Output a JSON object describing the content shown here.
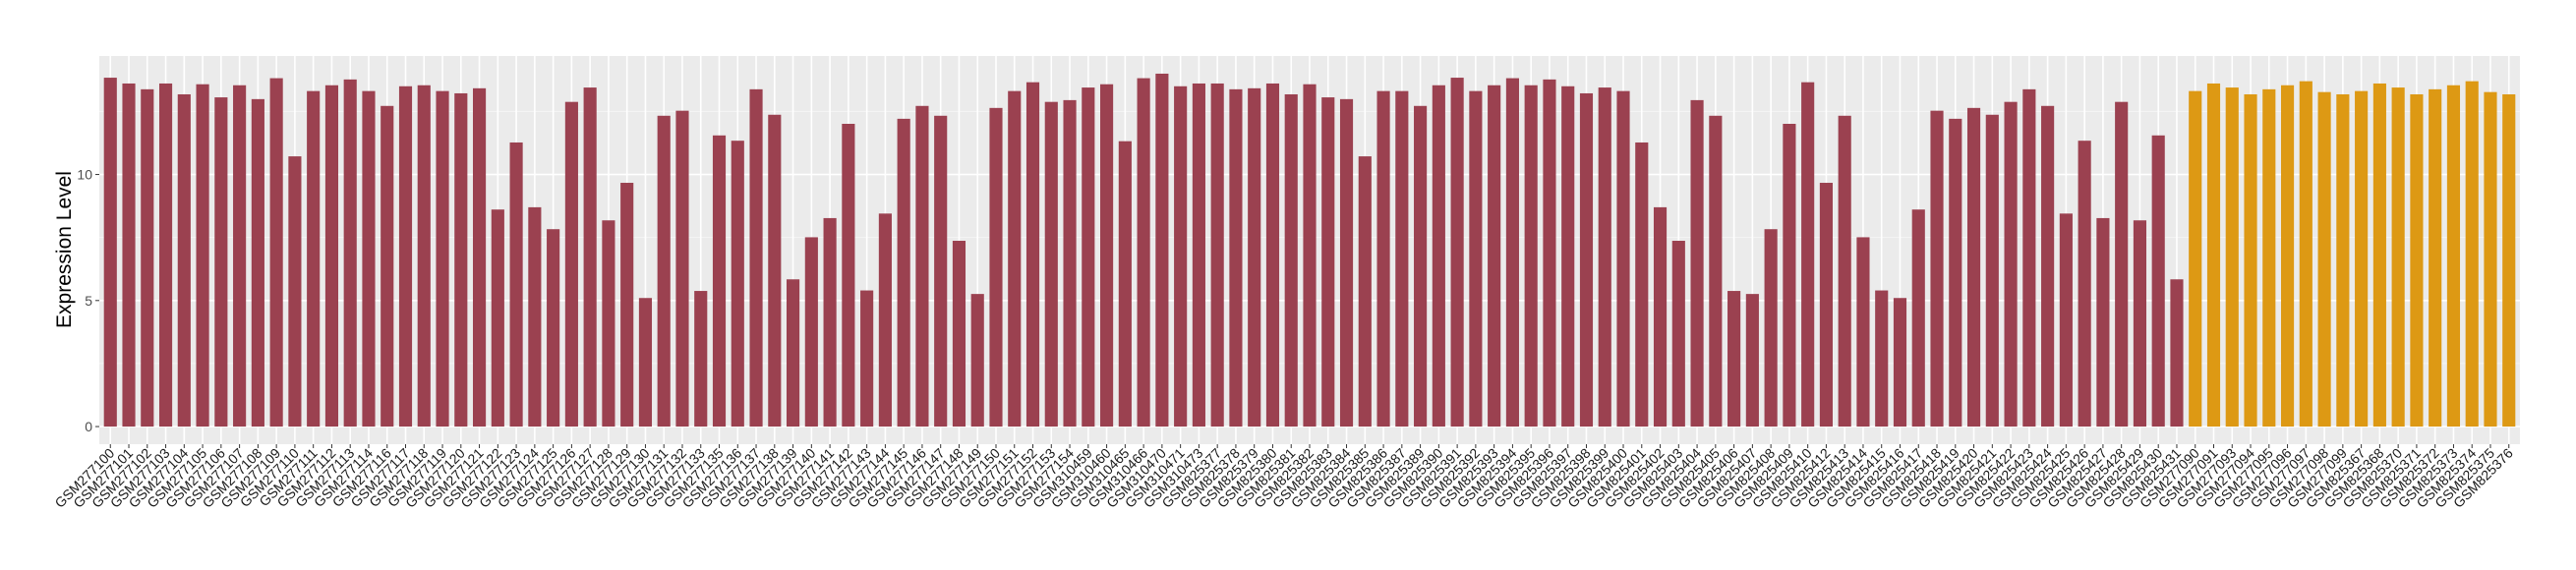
{
  "chart_data": {
    "type": "bar",
    "title": "",
    "xlabel": "",
    "ylabel": "Expression Level",
    "ylim": [
      -0.7,
      14.7
    ],
    "yticks": [
      0,
      5,
      10
    ],
    "grid": true,
    "legend": "none",
    "colors": {
      "group1": "#9B4150",
      "group2": "#DD9914",
      "panel": "#EBEBEB",
      "grid": "#FFFFFF"
    },
    "categories": [
      "GSM277100",
      "GSM277101",
      "GSM277102",
      "GSM277103",
      "GSM277104",
      "GSM277105",
      "GSM277106",
      "GSM277107",
      "GSM277108",
      "GSM277109",
      "GSM277110",
      "GSM277111",
      "GSM277112",
      "GSM277113",
      "GSM277114",
      "GSM277116",
      "GSM277117",
      "GSM277118",
      "GSM277119",
      "GSM277120",
      "GSM277121",
      "GSM277122",
      "GSM277123",
      "GSM277124",
      "GSM277125",
      "GSM277126",
      "GSM277127",
      "GSM277128",
      "GSM277129",
      "GSM277130",
      "GSM277131",
      "GSM277132",
      "GSM277133",
      "GSM277135",
      "GSM277136",
      "GSM277137",
      "GSM277138",
      "GSM277139",
      "GSM277140",
      "GSM277141",
      "GSM277142",
      "GSM277143",
      "GSM277144",
      "GSM277145",
      "GSM277146",
      "GSM277147",
      "GSM277148",
      "GSM277149",
      "GSM277150",
      "GSM277151",
      "GSM277152",
      "GSM277153",
      "GSM277154",
      "GSM310459",
      "GSM310460",
      "GSM310465",
      "GSM310466",
      "GSM310470",
      "GSM310471",
      "GSM310473",
      "GSM825377",
      "GSM825378",
      "GSM825379",
      "GSM825380",
      "GSM825381",
      "GSM825382",
      "GSM825383",
      "GSM825384",
      "GSM825385",
      "GSM825386",
      "GSM825387",
      "GSM825389",
      "GSM825390",
      "GSM825391",
      "GSM825392",
      "GSM825393",
      "GSM825394",
      "GSM825395",
      "GSM825396",
      "GSM825397",
      "GSM825398",
      "GSM825399",
      "GSM825400",
      "GSM825401",
      "GSM825402",
      "GSM825403",
      "GSM825404",
      "GSM825405",
      "GSM825406",
      "GSM825407",
      "GSM825408",
      "GSM825409",
      "GSM825410",
      "GSM825412",
      "GSM825413",
      "GSM825414",
      "GSM825415",
      "GSM825416",
      "GSM825417",
      "GSM825418",
      "GSM825419",
      "GSM825420",
      "GSM825421",
      "GSM825422",
      "GSM825423",
      "GSM825424",
      "GSM825425",
      "GSM825426",
      "GSM825427",
      "GSM825428",
      "GSM825429",
      "GSM825430",
      "GSM825431",
      "GSM277090",
      "GSM277091",
      "GSM277093",
      "GSM277094",
      "GSM277095",
      "GSM277096",
      "GSM277097",
      "GSM277098",
      "GSM277099",
      "GSM825367",
      "GSM825368",
      "GSM825370",
      "GSM825371",
      "GSM825372",
      "GSM825373",
      "GSM825374",
      "GSM825375",
      "GSM825376"
    ],
    "values": [
      13.84,
      13.61,
      13.38,
      13.61,
      13.18,
      13.58,
      13.06,
      13.54,
      12.99,
      13.82,
      10.72,
      13.31,
      13.54,
      13.77,
      13.31,
      12.72,
      13.5,
      13.54,
      13.31,
      13.22,
      13.42,
      8.61,
      11.27,
      8.7,
      7.83,
      12.88,
      13.45,
      8.18,
      9.67,
      5.1,
      12.33,
      12.53,
      5.38,
      11.55,
      11.34,
      13.38,
      12.37,
      5.84,
      7.51,
      8.27,
      12.01,
      5.4,
      8.45,
      12.21,
      12.72,
      12.33,
      7.37,
      5.26,
      12.64,
      13.31,
      13.66,
      12.88,
      12.95,
      13.45,
      13.58,
      11.32,
      13.82,
      14.0,
      13.5,
      13.61,
      13.61,
      13.38,
      13.42,
      13.61,
      13.18,
      13.58,
      13.06,
      12.99,
      10.72,
      13.31,
      13.31,
      12.72,
      13.54,
      13.84,
      13.31,
      13.54,
      13.82,
      13.54,
      13.77,
      13.5,
      13.22,
      13.45,
      13.31,
      11.27,
      8.7,
      7.37,
      12.95,
      12.33,
      5.38,
      5.26,
      7.83,
      12.01,
      13.66,
      9.67,
      12.33,
      7.51,
      5.4,
      5.1,
      8.61,
      12.53,
      12.21,
      12.64,
      12.37,
      12.88,
      13.38,
      12.72,
      8.45,
      11.34,
      8.27,
      12.88,
      8.18,
      11.55,
      5.84,
      13.31,
      13.61,
      13.45,
      13.18,
      13.38,
      13.54,
      13.7,
      13.27,
      13.18,
      13.31,
      13.61,
      13.45,
      13.18,
      13.38,
      13.54,
      13.7,
      13.27,
      13.18
    ],
    "group_counts": {
      "group1": 113,
      "group2": 18
    }
  }
}
